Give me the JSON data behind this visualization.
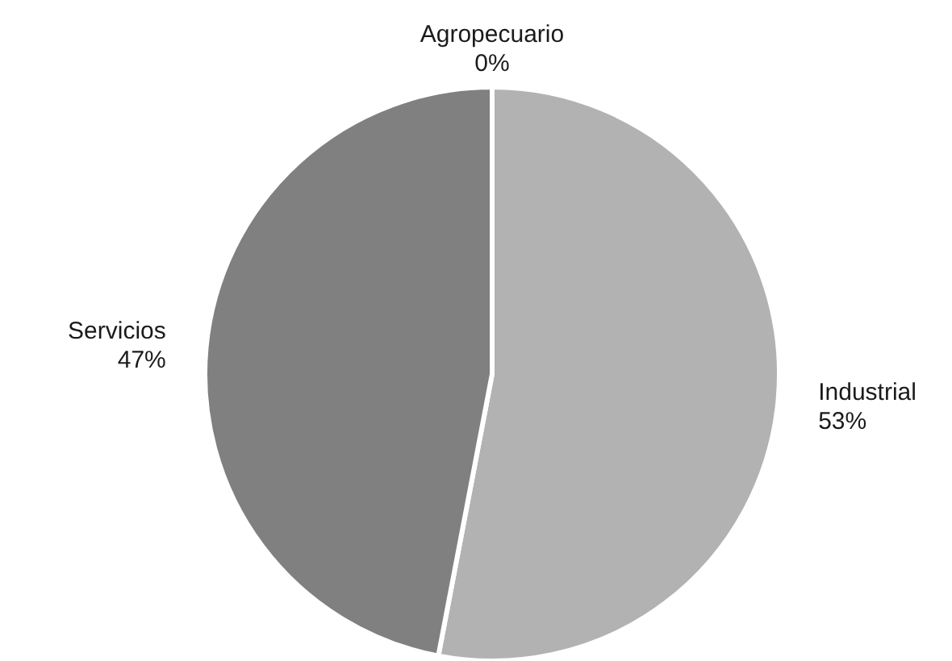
{
  "chart_data": {
    "type": "pie",
    "categories": [
      "Agropecuario",
      "Industrial",
      "Servicios"
    ],
    "values": [
      0,
      53,
      47
    ],
    "value_labels": [
      "0%",
      "53%",
      "47%"
    ],
    "colors": [
      "#404040",
      "#b2b2b2",
      "#808080"
    ]
  }
}
